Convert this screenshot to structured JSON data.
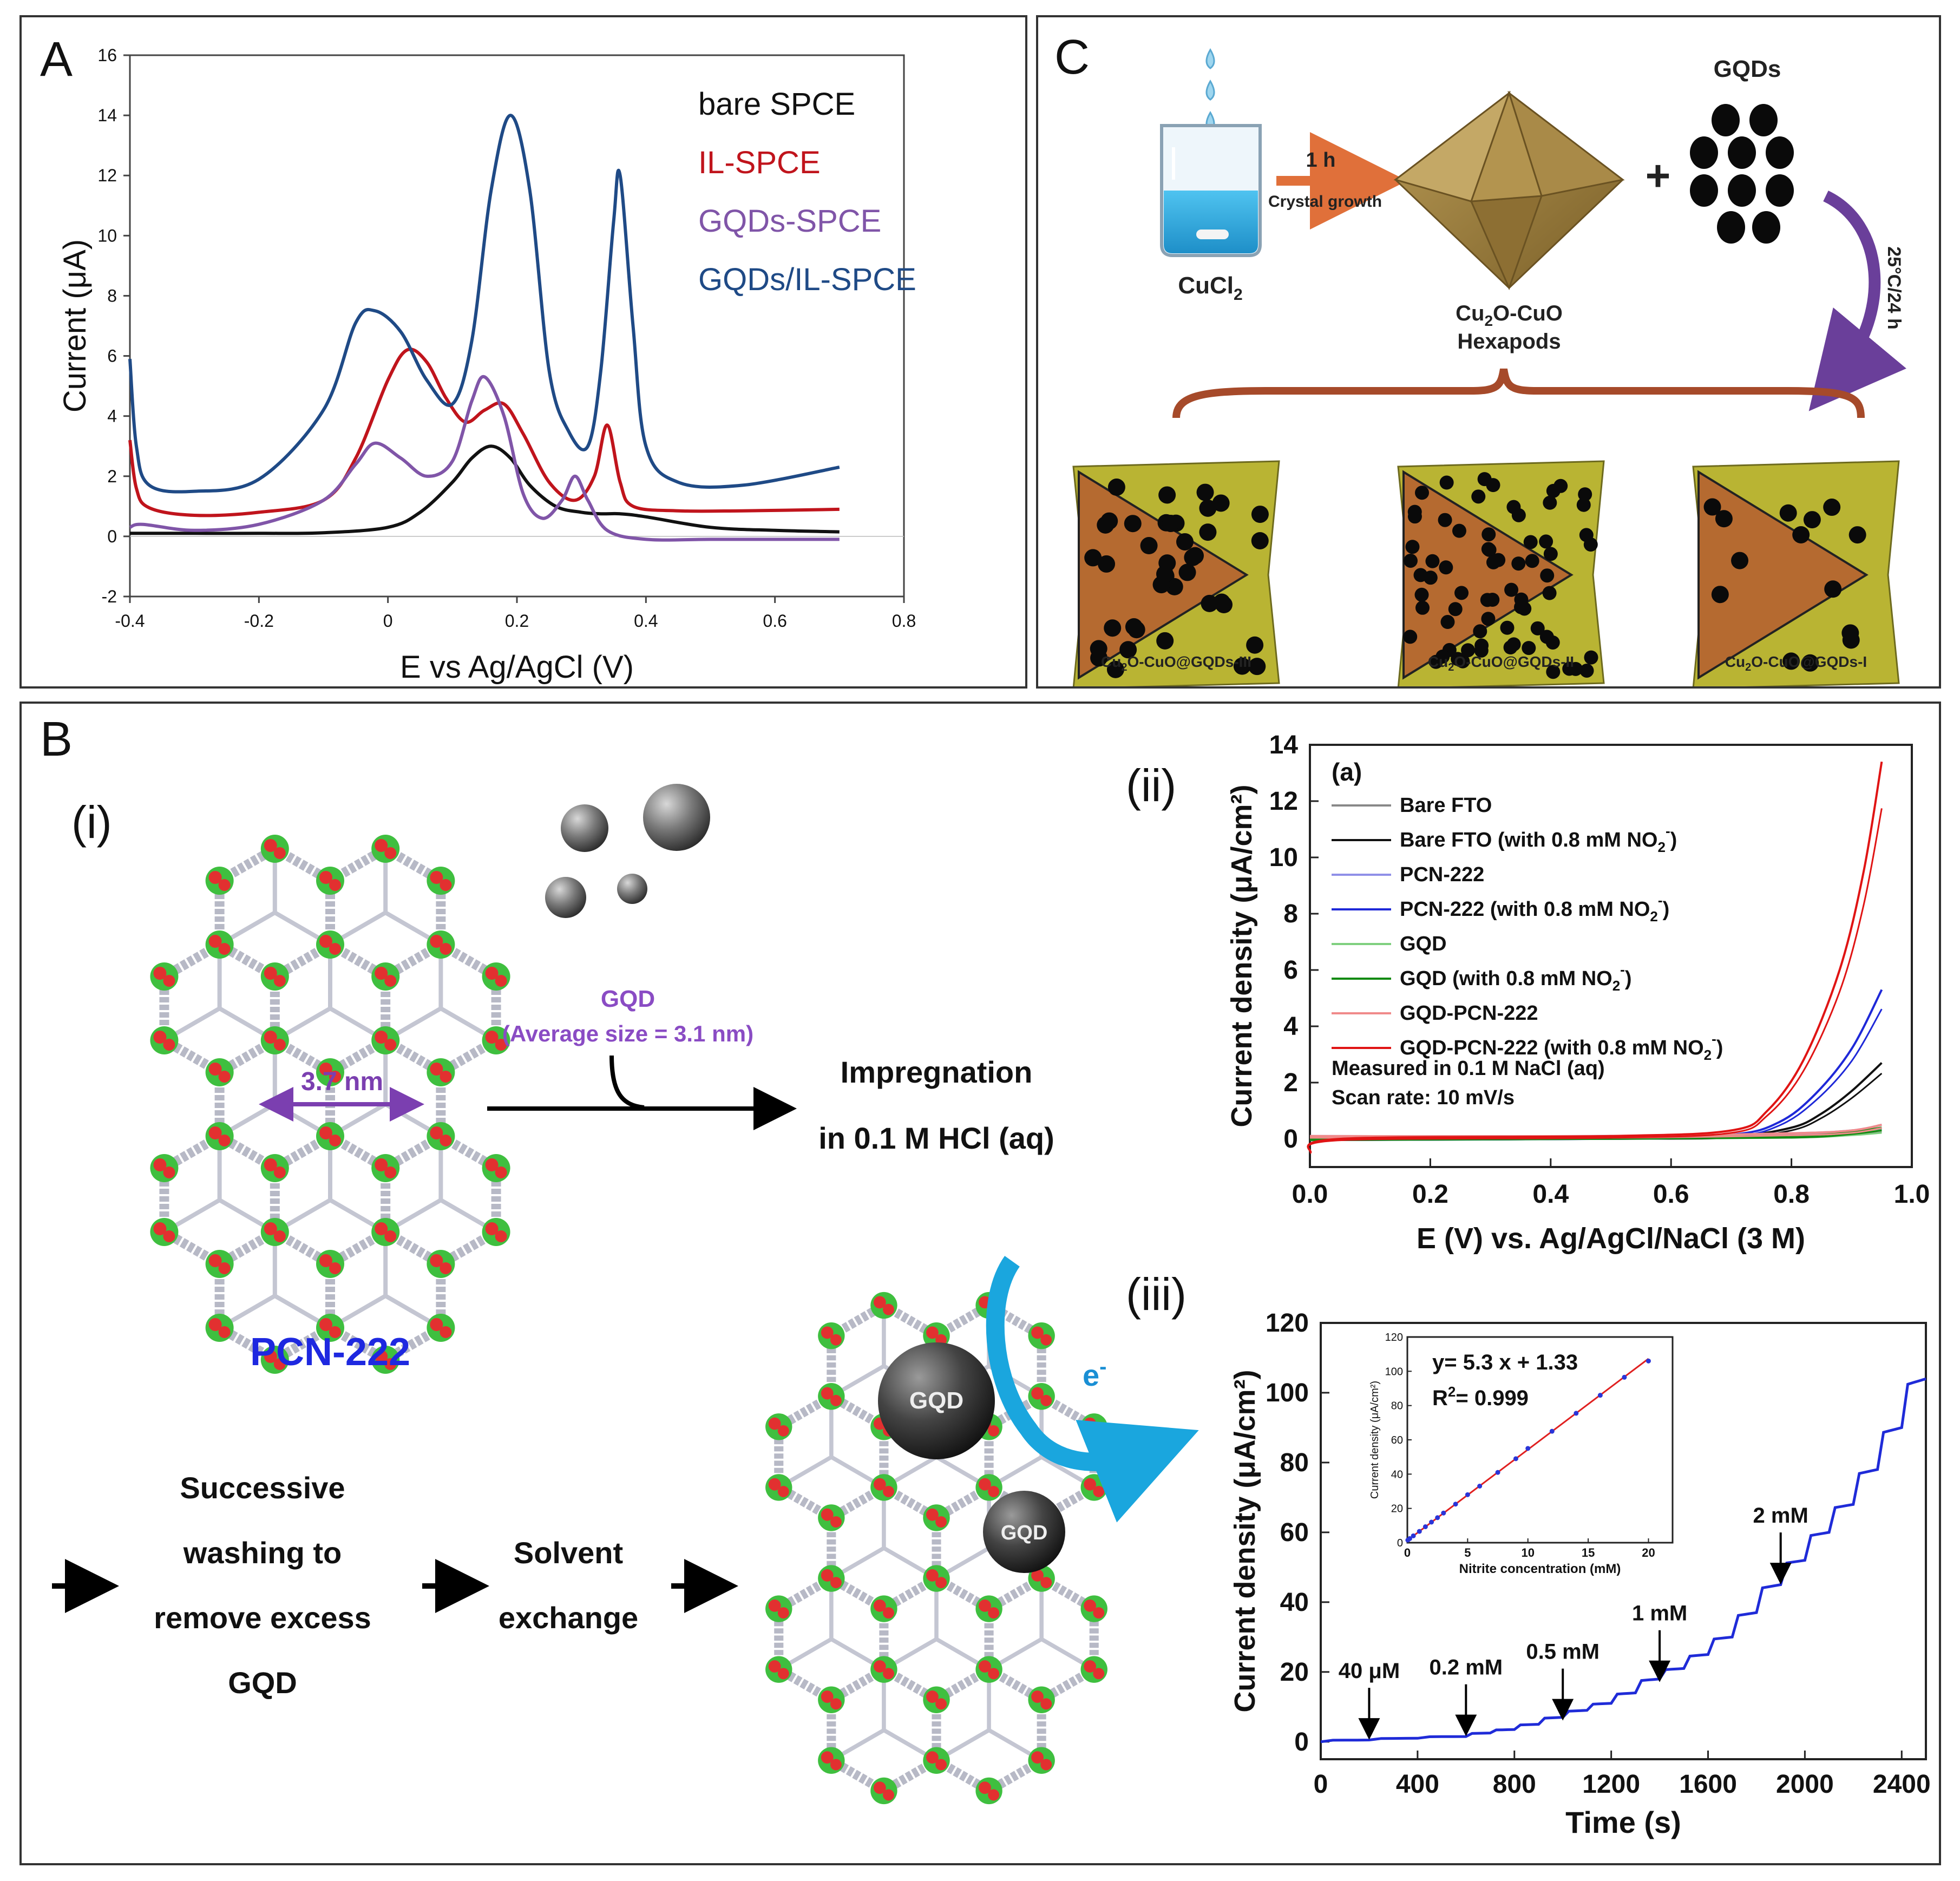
{
  "panels": {
    "A": {
      "label": "A"
    },
    "B": {
      "label": "B",
      "sub_i": "(i)",
      "sub_ii": "(ii)",
      "sub_iii": "(iii)"
    },
    "C": {
      "label": "C"
    }
  },
  "chart_data": [
    {
      "id": "A",
      "type": "line",
      "xlabel": "E vs Ag/AgCl (V)",
      "ylabel": "Current (μA)",
      "xlim": [
        -0.4,
        0.8
      ],
      "ylim": [
        -2,
        16
      ],
      "xticks": [
        "-0.4",
        "-0.2",
        "0",
        "0.2",
        "0.4",
        "0.6",
        "0.8"
      ],
      "yticks": [
        "-2",
        "0",
        "2",
        "4",
        "6",
        "8",
        "10",
        "12",
        "14",
        "16"
      ],
      "series": [
        {
          "name": "bare SPCE",
          "color": "#111111",
          "x": [
            -0.4,
            -0.3,
            -0.2,
            -0.1,
            0.0,
            0.05,
            0.1,
            0.13,
            0.16,
            0.19,
            0.22,
            0.26,
            0.3,
            0.33,
            0.36,
            0.4,
            0.5,
            0.6,
            0.7
          ],
          "y": [
            0.1,
            0.1,
            0.1,
            0.12,
            0.3,
            0.8,
            1.8,
            2.6,
            3.0,
            2.6,
            1.7,
            1.0,
            0.8,
            0.75,
            0.75,
            0.65,
            0.3,
            0.2,
            0.15
          ]
        },
        {
          "name": "IL-SPCE",
          "color": "#c0141c",
          "x": [
            -0.4,
            -0.39,
            -0.37,
            -0.3,
            -0.2,
            -0.1,
            -0.05,
            0.0,
            0.03,
            0.06,
            0.09,
            0.12,
            0.15,
            0.18,
            0.21,
            0.25,
            0.29,
            0.32,
            0.34,
            0.36,
            0.38,
            0.45,
            0.55,
            0.7
          ],
          "y": [
            3.2,
            1.6,
            0.95,
            0.7,
            0.8,
            1.2,
            2.6,
            5.2,
            6.2,
            5.8,
            4.6,
            3.8,
            4.2,
            4.4,
            3.4,
            1.8,
            1.2,
            2.0,
            3.7,
            1.8,
            1.0,
            0.85,
            0.85,
            0.9
          ]
        },
        {
          "name": "GQDs-SPCE",
          "color": "#8055a8",
          "x": [
            -0.4,
            -0.38,
            -0.3,
            -0.2,
            -0.1,
            -0.05,
            -0.02,
            0.02,
            0.06,
            0.1,
            0.13,
            0.15,
            0.18,
            0.21,
            0.24,
            0.27,
            0.29,
            0.31,
            0.34,
            0.4,
            0.5,
            0.6,
            0.7
          ],
          "y": [
            0.3,
            0.4,
            0.2,
            0.4,
            1.2,
            2.4,
            3.1,
            2.6,
            2.0,
            2.5,
            4.5,
            5.3,
            4.0,
            1.4,
            0.6,
            1.2,
            2.0,
            1.2,
            0.2,
            -0.1,
            -0.1,
            -0.1,
            -0.1
          ]
        },
        {
          "name": "GQDs/IL-SPCE",
          "color": "#1f4a86",
          "x": [
            -0.4,
            -0.39,
            -0.37,
            -0.3,
            -0.2,
            -0.1,
            -0.05,
            -0.02,
            0.02,
            0.06,
            0.1,
            0.13,
            0.16,
            0.19,
            0.22,
            0.25,
            0.28,
            0.31,
            0.33,
            0.35,
            0.36,
            0.38,
            0.4,
            0.45,
            0.55,
            0.7
          ],
          "y": [
            5.9,
            3.0,
            1.7,
            1.5,
            1.9,
            4.2,
            7.1,
            7.5,
            6.8,
            5.2,
            4.4,
            6.5,
            11.5,
            14.0,
            11.5,
            5.5,
            3.5,
            3.0,
            5.5,
            10.5,
            12.0,
            7.0,
            3.0,
            1.8,
            1.7,
            2.3
          ]
        }
      ]
    },
    {
      "id": "B-ii",
      "type": "line",
      "panel_tag": "(a)",
      "xlabel": "E (V) vs. Ag/AgCl/NaCl (3 M)",
      "ylabel": "Current density (μA/cm²)",
      "xlim": [
        0.0,
        1.0
      ],
      "ylim": [
        -1,
        14
      ],
      "xticks": [
        "0.0",
        "0.2",
        "0.4",
        "0.6",
        "0.8",
        "1.0"
      ],
      "yticks": [
        "0",
        "2",
        "4",
        "6",
        "8",
        "10",
        "12",
        "14"
      ],
      "notes": [
        "Measured in 0.1 M NaCl (aq)",
        "Scan rate: 10 mV/s"
      ],
      "legend": [
        {
          "name": "Bare FTO",
          "color": "#888888",
          "sub": ""
        },
        {
          "name": "Bare FTO (with 0.8 mM NO",
          "color": "#111111",
          "sub": "2"
        },
        {
          "name": "PCN-222",
          "color": "#8f8fe8",
          "sub": ""
        },
        {
          "name": "PCN-222 (with 0.8 mM NO",
          "color": "#1e28d8",
          "sub": "2"
        },
        {
          "name": "GQD",
          "color": "#7fd07f",
          "sub": ""
        },
        {
          "name": "GQD (with 0.8 mM NO",
          "color": "#138a13",
          "sub": "2"
        },
        {
          "name": "GQD-PCN-222",
          "color": "#f08a8a",
          "sub": ""
        },
        {
          "name": "GQD-PCN-222 (with 0.8 mM NO",
          "color": "#e01414",
          "sub": "2"
        }
      ],
      "series": [
        {
          "name": "Bare FTO",
          "color": "#888888",
          "x": [
            0,
            0.5,
            0.8,
            0.9,
            0.95
          ],
          "y": [
            0.05,
            0.1,
            0.15,
            0.25,
            0.35
          ]
        },
        {
          "name": "Bare FTO (with 0.8 mM NO2-)",
          "color": "#111111",
          "x": [
            0,
            0.5,
            0.7,
            0.8,
            0.85,
            0.9,
            0.95
          ],
          "y": [
            0.0,
            0.05,
            0.1,
            0.4,
            0.9,
            1.7,
            2.7
          ]
        },
        {
          "name": "PCN-222",
          "color": "#8f8fe8",
          "x": [
            0,
            0.5,
            0.8,
            0.9,
            0.95
          ],
          "y": [
            0.1,
            0.1,
            0.2,
            0.3,
            0.5
          ]
        },
        {
          "name": "PCN-222 (with 0.8 mM NO2-)",
          "color": "#1e28d8",
          "x": [
            0,
            0.5,
            0.7,
            0.78,
            0.84,
            0.9,
            0.95
          ],
          "y": [
            0.0,
            0.05,
            0.15,
            0.6,
            1.6,
            3.2,
            5.3
          ]
        },
        {
          "name": "GQD",
          "color": "#7fd07f",
          "x": [
            0,
            0.5,
            0.8,
            0.9,
            0.95
          ],
          "y": [
            0.05,
            0.05,
            0.1,
            0.2,
            0.3
          ]
        },
        {
          "name": "GQD (with 0.8 mM NO2-)",
          "color": "#138a13",
          "x": [
            0,
            0.5,
            0.8,
            0.9,
            0.95
          ],
          "y": [
            0.0,
            0.05,
            0.1,
            0.25,
            0.4
          ]
        },
        {
          "name": "GQD-PCN-222",
          "color": "#f08a8a",
          "x": [
            0,
            0.5,
            0.8,
            0.9,
            0.95
          ],
          "y": [
            0.1,
            0.1,
            0.2,
            0.3,
            0.5
          ]
        },
        {
          "name": "GQD-PCN-222 (with 0.8 mM NO2-)",
          "color": "#e01414",
          "x": [
            0,
            0.05,
            0.5,
            0.7,
            0.76,
            0.82,
            0.88,
            0.92,
            0.95
          ],
          "y": [
            -0.5,
            0.0,
            0.1,
            0.3,
            1.0,
            2.8,
            6.0,
            9.5,
            13.4
          ]
        }
      ]
    },
    {
      "id": "B-iii",
      "type": "line",
      "xlabel": "Time (s)",
      "ylabel": "Current density (μA/cm²)",
      "xlim": [
        0,
        2500
      ],
      "ylim": [
        -5,
        120
      ],
      "xticks": [
        "0",
        "400",
        "800",
        "1200",
        "1600",
        "2000",
        "2400"
      ],
      "yticks": [
        "0",
        "20",
        "40",
        "60",
        "80",
        "100",
        "120"
      ],
      "annotations": [
        {
          "text": "40 μM",
          "x": 200,
          "y": 1.5
        },
        {
          "text": "0.2 mM",
          "x": 600,
          "y": 2.5
        },
        {
          "text": "0.5 mM",
          "x": 1000,
          "y": 7
        },
        {
          "text": "1 mM",
          "x": 1400,
          "y": 18
        },
        {
          "text": "2 mM",
          "x": 1900,
          "y": 46
        }
      ],
      "series": [
        {
          "name": "current",
          "color": "#1f2bd8",
          "x": [
            0,
            200,
            400,
            600,
            700,
            800,
            900,
            1000,
            1100,
            1200,
            1300,
            1400,
            1500,
            1600,
            1700,
            1800,
            1900,
            2000,
            2100,
            2200,
            2300,
            2400,
            2500
          ],
          "y": [
            0,
            0.5,
            1.0,
            1.5,
            2.5,
            3.5,
            5.0,
            7.0,
            9.0,
            11.0,
            14.0,
            18.0,
            21.0,
            25.0,
            30.0,
            37.0,
            45.0,
            52.0,
            60.0,
            68.0,
            78.0,
            90.0,
            104.0
          ]
        }
      ],
      "inset": {
        "type": "scatter",
        "equation": "y= 5.3 x + 1.33",
        "r2_prefix": "R",
        "r2_sup": "2",
        "r2_value": "= 0.999",
        "xlabel": "Nitrite concentration (mM)",
        "ylabel": "Current density (μA/cm²)",
        "xlim": [
          0,
          22
        ],
        "ylim": [
          0,
          120
        ],
        "xticks": [
          "0",
          "5",
          "10",
          "15",
          "20"
        ],
        "yticks": [
          "0",
          "20",
          "40",
          "60",
          "80",
          "100",
          "120"
        ],
        "x": [
          0.04,
          0.2,
          0.5,
          1,
          1.5,
          2,
          2.5,
          3,
          4,
          5,
          6,
          7.5,
          9,
          10,
          12,
          14,
          16,
          18,
          20
        ],
        "y": [
          1.5,
          2.4,
          4,
          6.6,
          9.3,
          12,
          14.6,
          17.3,
          22.5,
          28,
          33,
          41,
          49,
          55,
          65,
          75.5,
          86,
          96.5,
          106
        ],
        "fit_line": [
          0,
          1.33,
          20,
          107.33
        ]
      }
    }
  ],
  "panel_B_i": {
    "gqd_label": "GQD",
    "gqd_size": "(Average size = 3.1 nm)",
    "pore_size": "3.7 nm",
    "mof_label": "PCN-222",
    "step1_line1": "Impregnation",
    "step1_line2": "in 0.1 M HCl (aq)",
    "step2_lines": [
      "Successive",
      "washing to",
      "remove excess",
      "GQD"
    ],
    "step3_lines": [
      "Solvent",
      "exchange"
    ],
    "gqd_ball": "GQD",
    "electron": "e"
  },
  "panel_C": {
    "beaker_label_main": "CuCl",
    "beaker_label_sub": "2",
    "arrow_time": "1 h",
    "arrow_desc": "Crystal growth",
    "hexapod_line1": "Cu",
    "hexapod_sub": "2",
    "hexapod_line1_rest": "O-CuO",
    "hexapod_line2": "Hexapods",
    "gqds_label": "GQDs",
    "plus": "+",
    "curve_label": "25°C/24 h",
    "products": [
      {
        "pre": "Cu",
        "sub": "2",
        "rest": "O-CuO@GQDs-III"
      },
      {
        "pre": "Cu",
        "sub": "2",
        "rest": "O-CuO@GQDs-II"
      },
      {
        "pre": "Cu",
        "sub": "2",
        "rest": "O-CuO@GQDs-I"
      }
    ]
  }
}
